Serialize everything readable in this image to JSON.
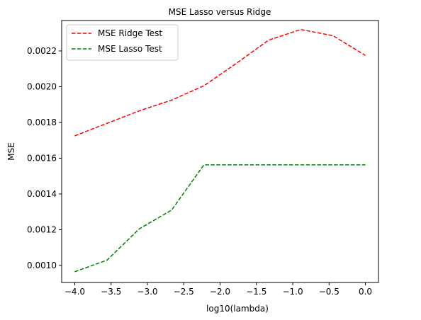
{
  "chart_data": {
    "type": "line",
    "title": "MSE Lasso versus Ridge",
    "xlabel": "log10(lambda)",
    "ylabel": "MSE",
    "xlim": [
      -4.18,
      0.18
    ],
    "ylim": [
      0.000905,
      0.00237
    ],
    "x_ticks": [
      -4.0,
      -3.5,
      -3.0,
      -2.5,
      -2.0,
      -1.5,
      -1.0,
      -0.5,
      0.0
    ],
    "x_tick_labels": [
      "−4.0",
      "−3.5",
      "−3.0",
      "−2.5",
      "−2.0",
      "−1.5",
      "−1.0",
      "−0.5",
      "0.0"
    ],
    "y_ticks": [
      0.001,
      0.0012,
      0.0014,
      0.0016,
      0.0018,
      0.002,
      0.0022
    ],
    "y_tick_labels": [
      "0.0010",
      "0.0012",
      "0.0014",
      "0.0016",
      "0.0018",
      "0.0020",
      "0.0022"
    ],
    "grid": false,
    "legend_position": "top-left",
    "x": [
      -4.0,
      -3.5556,
      -3.1111,
      -2.6667,
      -2.2222,
      -1.7778,
      -1.3333,
      -0.8889,
      -0.4444,
      0.0
    ],
    "series": [
      {
        "name": "MSE Ridge Test",
        "color": "#ff0000",
        "style": "dashed",
        "values": [
          0.001725,
          0.001795,
          0.001865,
          0.001925,
          0.002005,
          0.00213,
          0.00226,
          0.00232,
          0.002285,
          0.002175
        ]
      },
      {
        "name": "MSE Lasso Test",
        "color": "#008000",
        "style": "dashed",
        "values": [
          0.000965,
          0.00103,
          0.001205,
          0.00131,
          0.001563,
          0.001563,
          0.001563,
          0.001563,
          0.001563,
          0.001563
        ]
      }
    ]
  }
}
